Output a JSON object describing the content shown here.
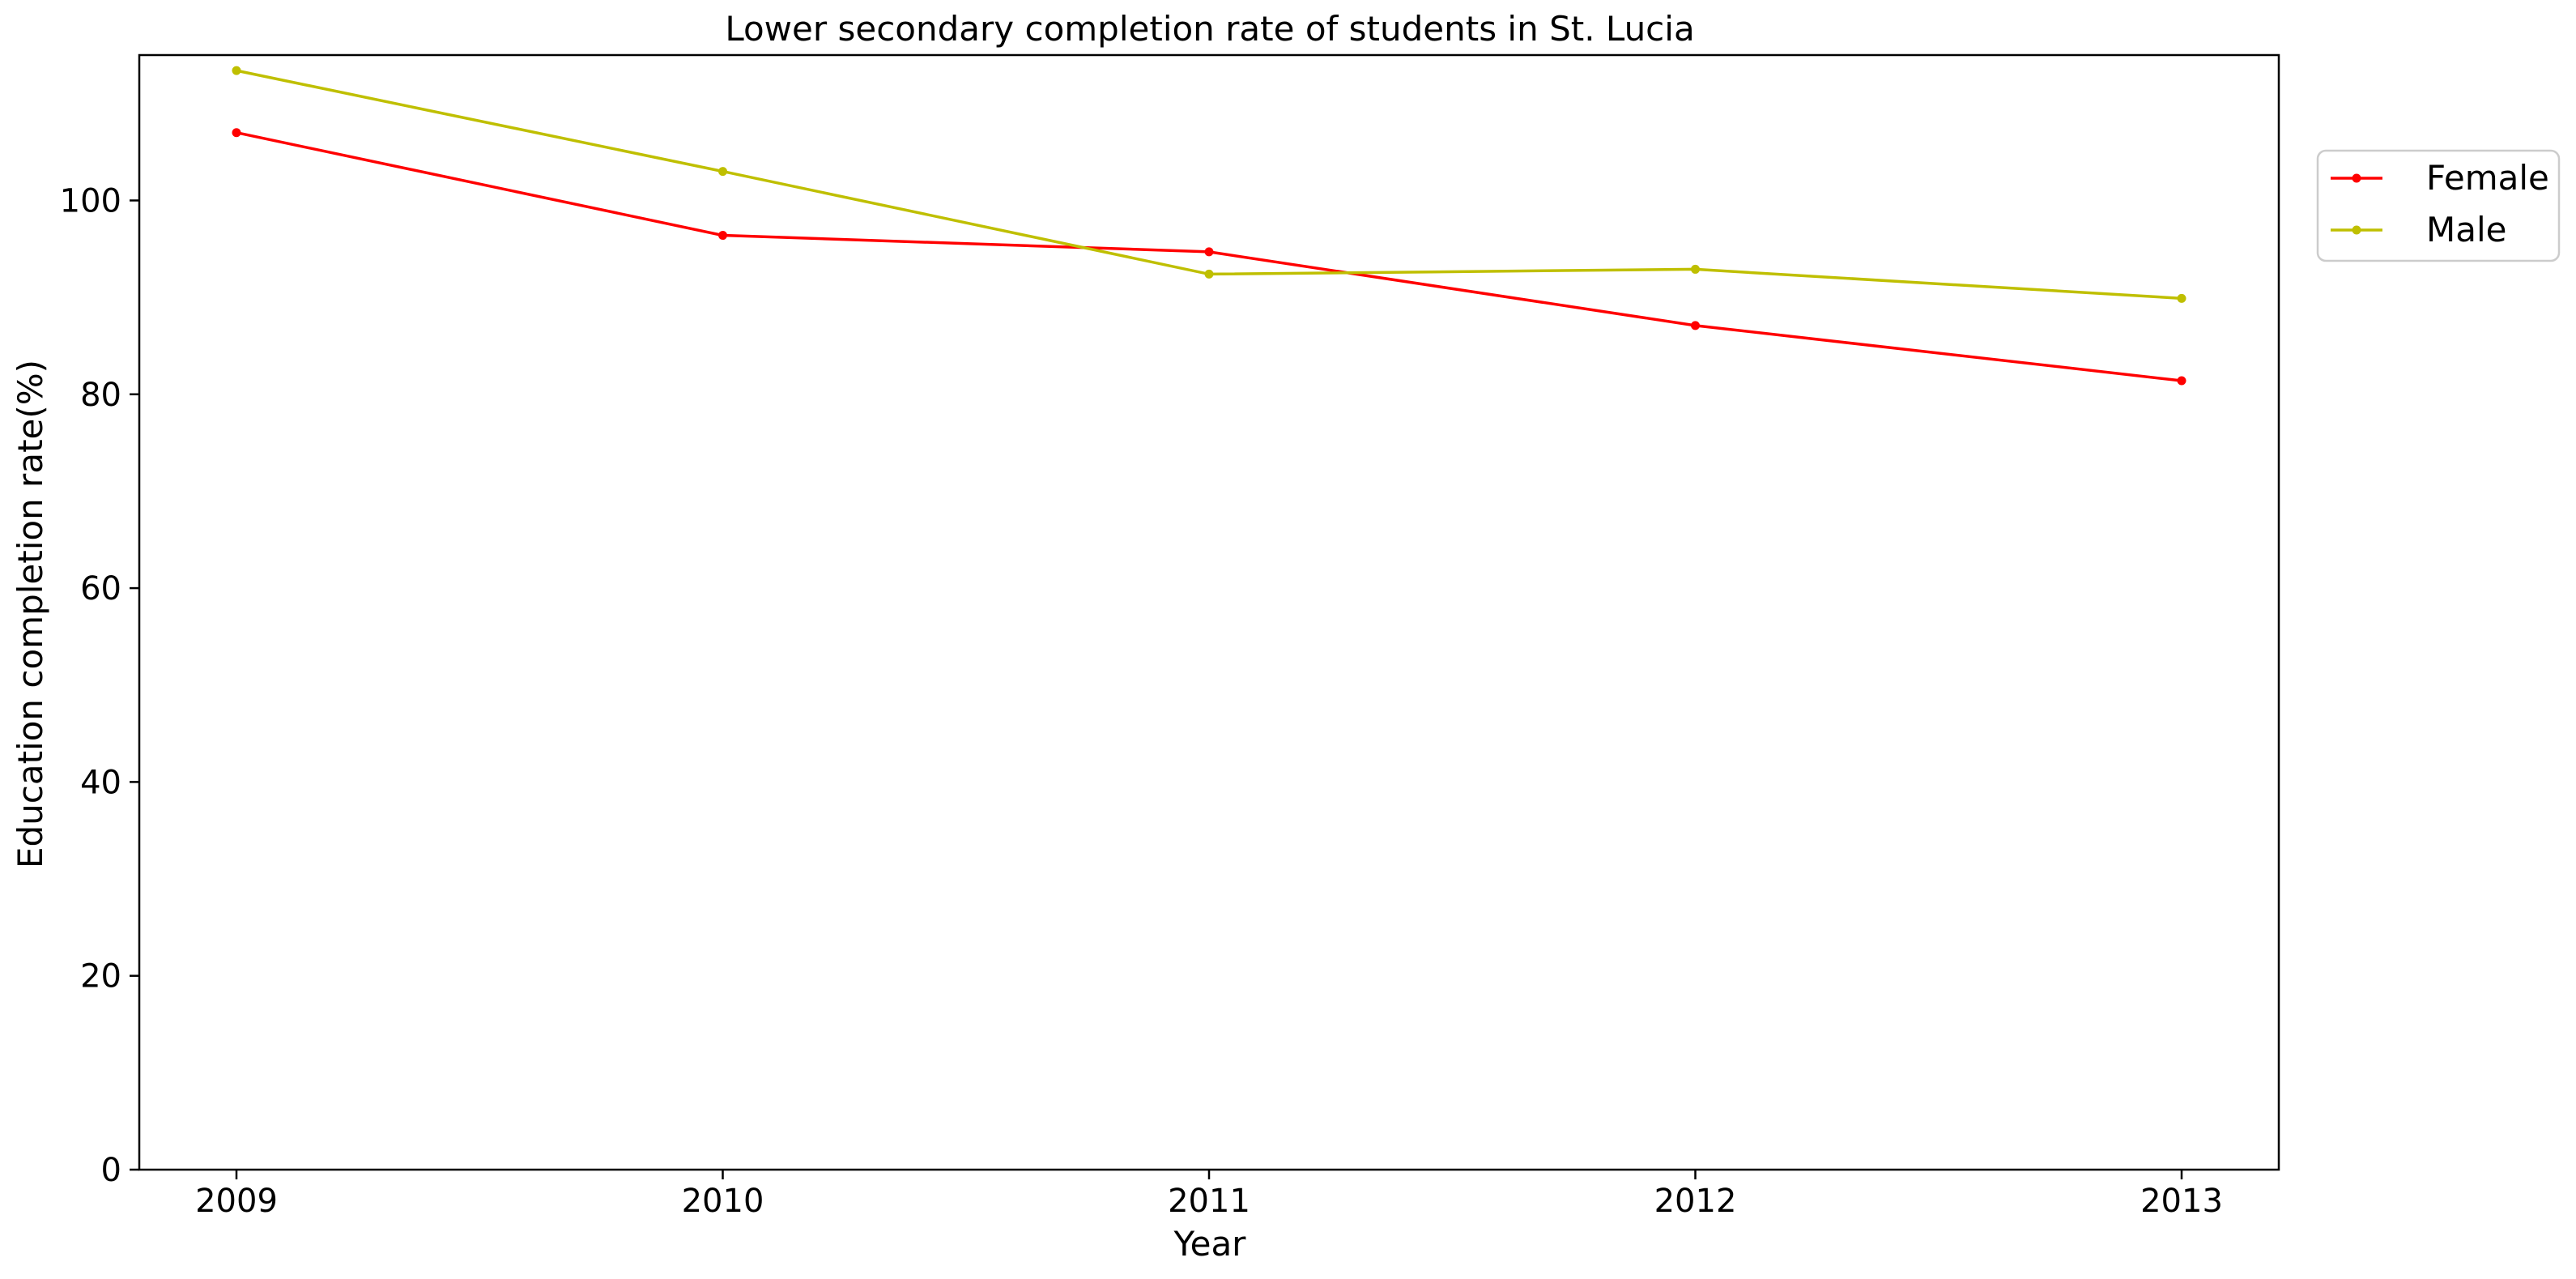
{
  "chart_data": {
    "type": "line",
    "title": "Lower secondary completion rate of students in St. Lucia",
    "xlabel": "Year",
    "ylabel": "Education completion rate(%)",
    "categories": [
      "2009",
      "2010",
      "2011",
      "2012",
      "2013"
    ],
    "yticks": [
      "0",
      "20",
      "40",
      "60",
      "80",
      "100"
    ],
    "ylim": [
      0,
      115
    ],
    "grid": false,
    "legend_position": "top-right outside",
    "series": [
      {
        "name": "Female",
        "color": "#ff0000",
        "values": [
          107.0,
          96.4,
          94.7,
          87.1,
          81.4
        ]
      },
      {
        "name": "Male",
        "color": "#bfbf00",
        "values": [
          113.4,
          103.0,
          92.4,
          92.9,
          89.9
        ]
      }
    ]
  }
}
